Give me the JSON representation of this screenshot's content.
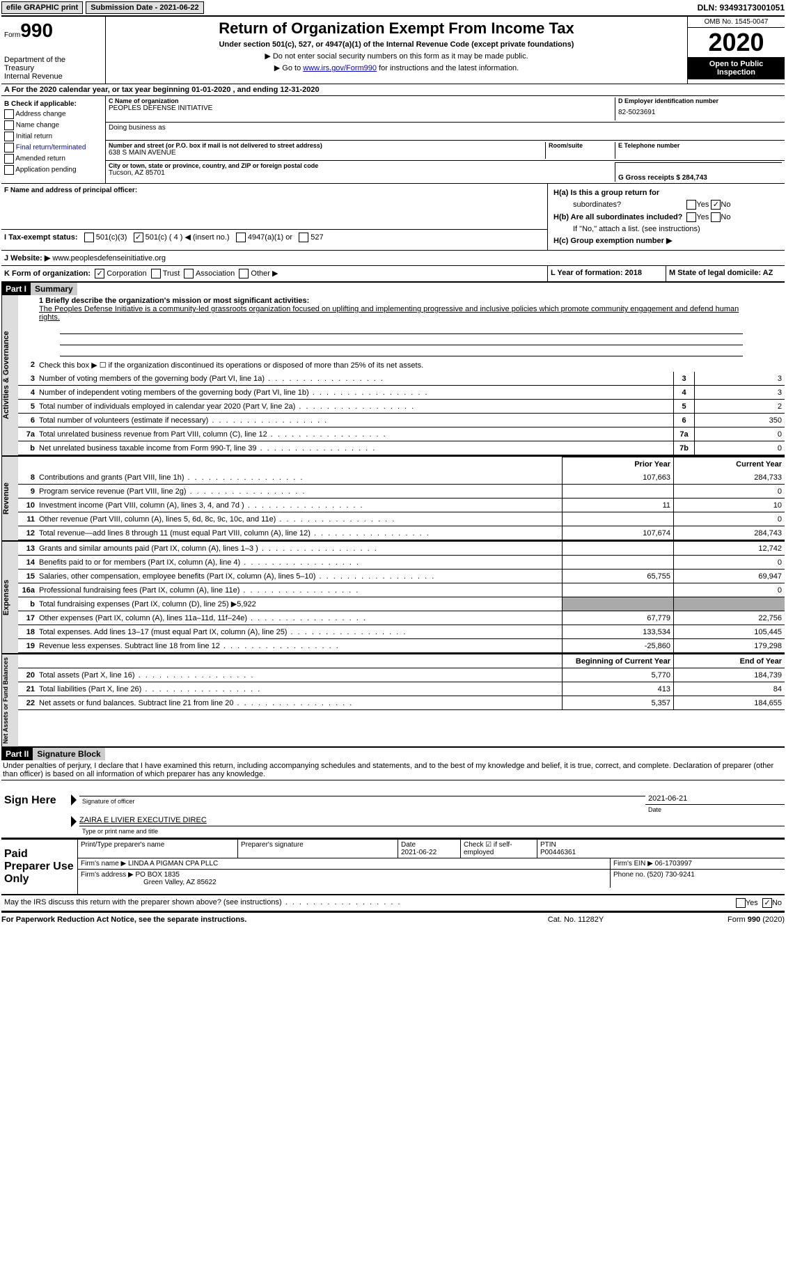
{
  "top": {
    "efile_label": "efile GRAPHIC print",
    "submission_label": "Submission Date - 2021-06-22",
    "dln_label": "DLN: 93493173001051"
  },
  "header": {
    "form_word": "Form",
    "form_num": "990",
    "dept1": "Department of the",
    "dept2": "Treasury",
    "dept3": "Internal Revenue",
    "title": "Return of Organization Exempt From Income Tax",
    "subtitle": "Under section 501(c), 527, or 4947(a)(1) of the Internal Revenue Code (except private foundations)",
    "instr1": "▶ Do not enter social security numbers on this form as it may be made public.",
    "instr2_pre": "▶ Go to ",
    "instr2_link": "www.irs.gov/Form990",
    "instr2_post": " for instructions and the latest information.",
    "omb": "OMB No. 1545-0047",
    "year": "2020",
    "open1": "Open to Public",
    "open2": "Inspection"
  },
  "period": {
    "text": "A For the 2020 calendar year, or tax year beginning 01-01-2020    , and ending 12-31-2020"
  },
  "colB": {
    "label": "B Check if applicable:",
    "items": [
      "Address change",
      "Name change",
      "Initial return",
      "Final return/terminated",
      "Amended return",
      "Application pending"
    ]
  },
  "colC": {
    "name_label": "C Name of organization",
    "name": "PEOPLES DEFENSE INITIATIVE",
    "dba_label": "Doing business as",
    "addr_label": "Number and street (or P.O. box if mail is not delivered to street address)",
    "room_label": "Room/suite",
    "addr": "638 S MAIN AVENUE",
    "city_label": "City or town, state or province, country, and ZIP or foreign postal code",
    "city": "Tucson, AZ  85701"
  },
  "colD": {
    "ein_label": "D Employer identification number",
    "ein": "82-5023691",
    "tel_label": "E Telephone number",
    "gross_label": "G Gross receipts $ 284,743"
  },
  "rowF": {
    "label": "F Name and address of principal officer:"
  },
  "colH": {
    "ha": "H(a)  Is this a group return for",
    "ha2": "subordinates?",
    "hb": "H(b)  Are all subordinates included?",
    "hb2": "If \"No,\" attach a list. (see instructions)",
    "hc": "H(c)  Group exemption number ▶",
    "yes": "Yes",
    "no": "No"
  },
  "rowI": {
    "label": "I    Tax-exempt status:",
    "opts": [
      "501(c)(3)",
      "501(c) ( 4 ) ◀ (insert no.)",
      "4947(a)(1) or",
      "527"
    ]
  },
  "rowJ": {
    "label": "J   Website: ▶",
    "value": "  www.peoplesdefenseinitiative.org"
  },
  "rowK": {
    "label": "K Form of organization:",
    "opts": [
      "Corporation",
      "Trust",
      "Association",
      "Other ▶"
    ]
  },
  "rowL": {
    "label": "L Year of formation: 2018"
  },
  "rowM": {
    "label": "M State of legal domicile: AZ"
  },
  "part1": {
    "hdr": "Part I",
    "title": "Summary"
  },
  "mission": {
    "label": "1  Briefly describe the organization's mission or most significant activities:",
    "text": "The Peoples Defense Initiative is a community-led grassroots organization focused on uplifting and implementing progressive and inclusive policies which promote community engagement and defend human rights."
  },
  "lines_gov": [
    {
      "n": "2",
      "t": "Check this box ▶ ☐  if the organization discontinued its operations or disposed of more than 25% of its net assets."
    },
    {
      "n": "3",
      "t": "Number of voting members of the governing body (Part VI, line 1a)",
      "box": "3",
      "v": "3"
    },
    {
      "n": "4",
      "t": "Number of independent voting members of the governing body (Part VI, line 1b)",
      "box": "4",
      "v": "3"
    },
    {
      "n": "5",
      "t": "Total number of individuals employed in calendar year 2020 (Part V, line 2a)",
      "box": "5",
      "v": "2"
    },
    {
      "n": "6",
      "t": "Total number of volunteers (estimate if necessary)",
      "box": "6",
      "v": "350"
    },
    {
      "n": "7a",
      "t": "Total unrelated business revenue from Part VIII, column (C), line 12",
      "box": "7a",
      "v": "0"
    },
    {
      "n": "b",
      "t": "Net unrelated business taxable income from Form 990-T, line 39",
      "box": "7b",
      "v": "0"
    }
  ],
  "col_hdrs": {
    "prior": "Prior Year",
    "current": "Current Year"
  },
  "lines_rev": [
    {
      "n": "8",
      "t": "Contributions and grants (Part VIII, line 1h)",
      "p": "107,663",
      "c": "284,733"
    },
    {
      "n": "9",
      "t": "Program service revenue (Part VIII, line 2g)",
      "p": "",
      "c": "0"
    },
    {
      "n": "10",
      "t": "Investment income (Part VIII, column (A), lines 3, 4, and 7d )",
      "p": "11",
      "c": "10"
    },
    {
      "n": "11",
      "t": "Other revenue (Part VIII, column (A), lines 5, 6d, 8c, 9c, 10c, and 11e)",
      "p": "",
      "c": "0"
    },
    {
      "n": "12",
      "t": "Total revenue—add lines 8 through 11 (must equal Part VIII, column (A), line 12)",
      "p": "107,674",
      "c": "284,743"
    }
  ],
  "lines_exp": [
    {
      "n": "13",
      "t": "Grants and similar amounts paid (Part IX, column (A), lines 1–3 )",
      "p": "",
      "c": "12,742"
    },
    {
      "n": "14",
      "t": "Benefits paid to or for members (Part IX, column (A), line 4)",
      "p": "",
      "c": "0"
    },
    {
      "n": "15",
      "t": "Salaries, other compensation, employee benefits (Part IX, column (A), lines 5–10)",
      "p": "65,755",
      "c": "69,947"
    },
    {
      "n": "16a",
      "t": "Professional fundraising fees (Part IX, column (A), line 11e)",
      "p": "",
      "c": "0"
    },
    {
      "n": "b",
      "t": "Total fundraising expenses (Part IX, column (D), line 25) ▶5,922",
      "shade": true
    },
    {
      "n": "17",
      "t": "Other expenses (Part IX, column (A), lines 11a–11d, 11f–24e)",
      "p": "67,779",
      "c": "22,756"
    },
    {
      "n": "18",
      "t": "Total expenses. Add lines 13–17 (must equal Part IX, column (A), line 25)",
      "p": "133,534",
      "c": "105,445"
    },
    {
      "n": "19",
      "t": "Revenue less expenses. Subtract line 18 from line 12",
      "p": "-25,860",
      "c": "179,298"
    }
  ],
  "col_hdrs2": {
    "prior": "Beginning of Current Year",
    "current": "End of Year"
  },
  "lines_net": [
    {
      "n": "20",
      "t": "Total assets (Part X, line 16)",
      "p": "5,770",
      "c": "184,739"
    },
    {
      "n": "21",
      "t": "Total liabilities (Part X, line 26)",
      "p": "413",
      "c": "84"
    },
    {
      "n": "22",
      "t": "Net assets or fund balances. Subtract line 21 from line 20",
      "p": "5,357",
      "c": "184,655"
    }
  ],
  "part2": {
    "hdr": "Part II",
    "title": "Signature Block"
  },
  "penalty": "Under penalties of perjury, I declare that I have examined this return, including accompanying schedules and statements, and to the best of my knowledge and belief, it is true, correct, and complete. Declaration of preparer (other than officer) is based on all information of which preparer has any knowledge.",
  "sign": {
    "here": "Sign Here",
    "sig_label": "Signature of officer",
    "date_label": "Date",
    "date": "2021-06-21",
    "name": "ZAIRA E LIVIER  EXECUTIVE DIREC",
    "name_label": "Type or print name and title"
  },
  "prep": {
    "label": "Paid Preparer Use Only",
    "print_label": "Print/Type preparer's name",
    "sig_label": "Preparer's signature",
    "date_label": "Date",
    "date": "2021-06-22",
    "check_label": "Check ☑ if self-employed",
    "ptin_label": "PTIN",
    "ptin": "P00446361",
    "firm_name_label": "Firm's name    ▶",
    "firm_name": "LINDA A PIGMAN CPA PLLC",
    "firm_ein_label": "Firm's EIN ▶",
    "firm_ein": "06-1703997",
    "firm_addr_label": "Firm's address ▶",
    "firm_addr1": "PO BOX 1835",
    "firm_addr2": "Green Valley, AZ  85622",
    "phone_label": "Phone no.",
    "phone": "(520) 730-9241"
  },
  "discuss": {
    "text": "May the IRS discuss this return with the preparer shown above? (see instructions)",
    "yes": "Yes",
    "no": "No"
  },
  "footer": {
    "left": "For Paperwork Reduction Act Notice, see the separate instructions.",
    "mid": "Cat. No. 11282Y",
    "right": "Form 990 (2020)"
  },
  "vtabs": {
    "gov": "Activities & Governance",
    "rev": "Revenue",
    "exp": "Expenses",
    "net": "Net Assets or Fund Balances"
  }
}
